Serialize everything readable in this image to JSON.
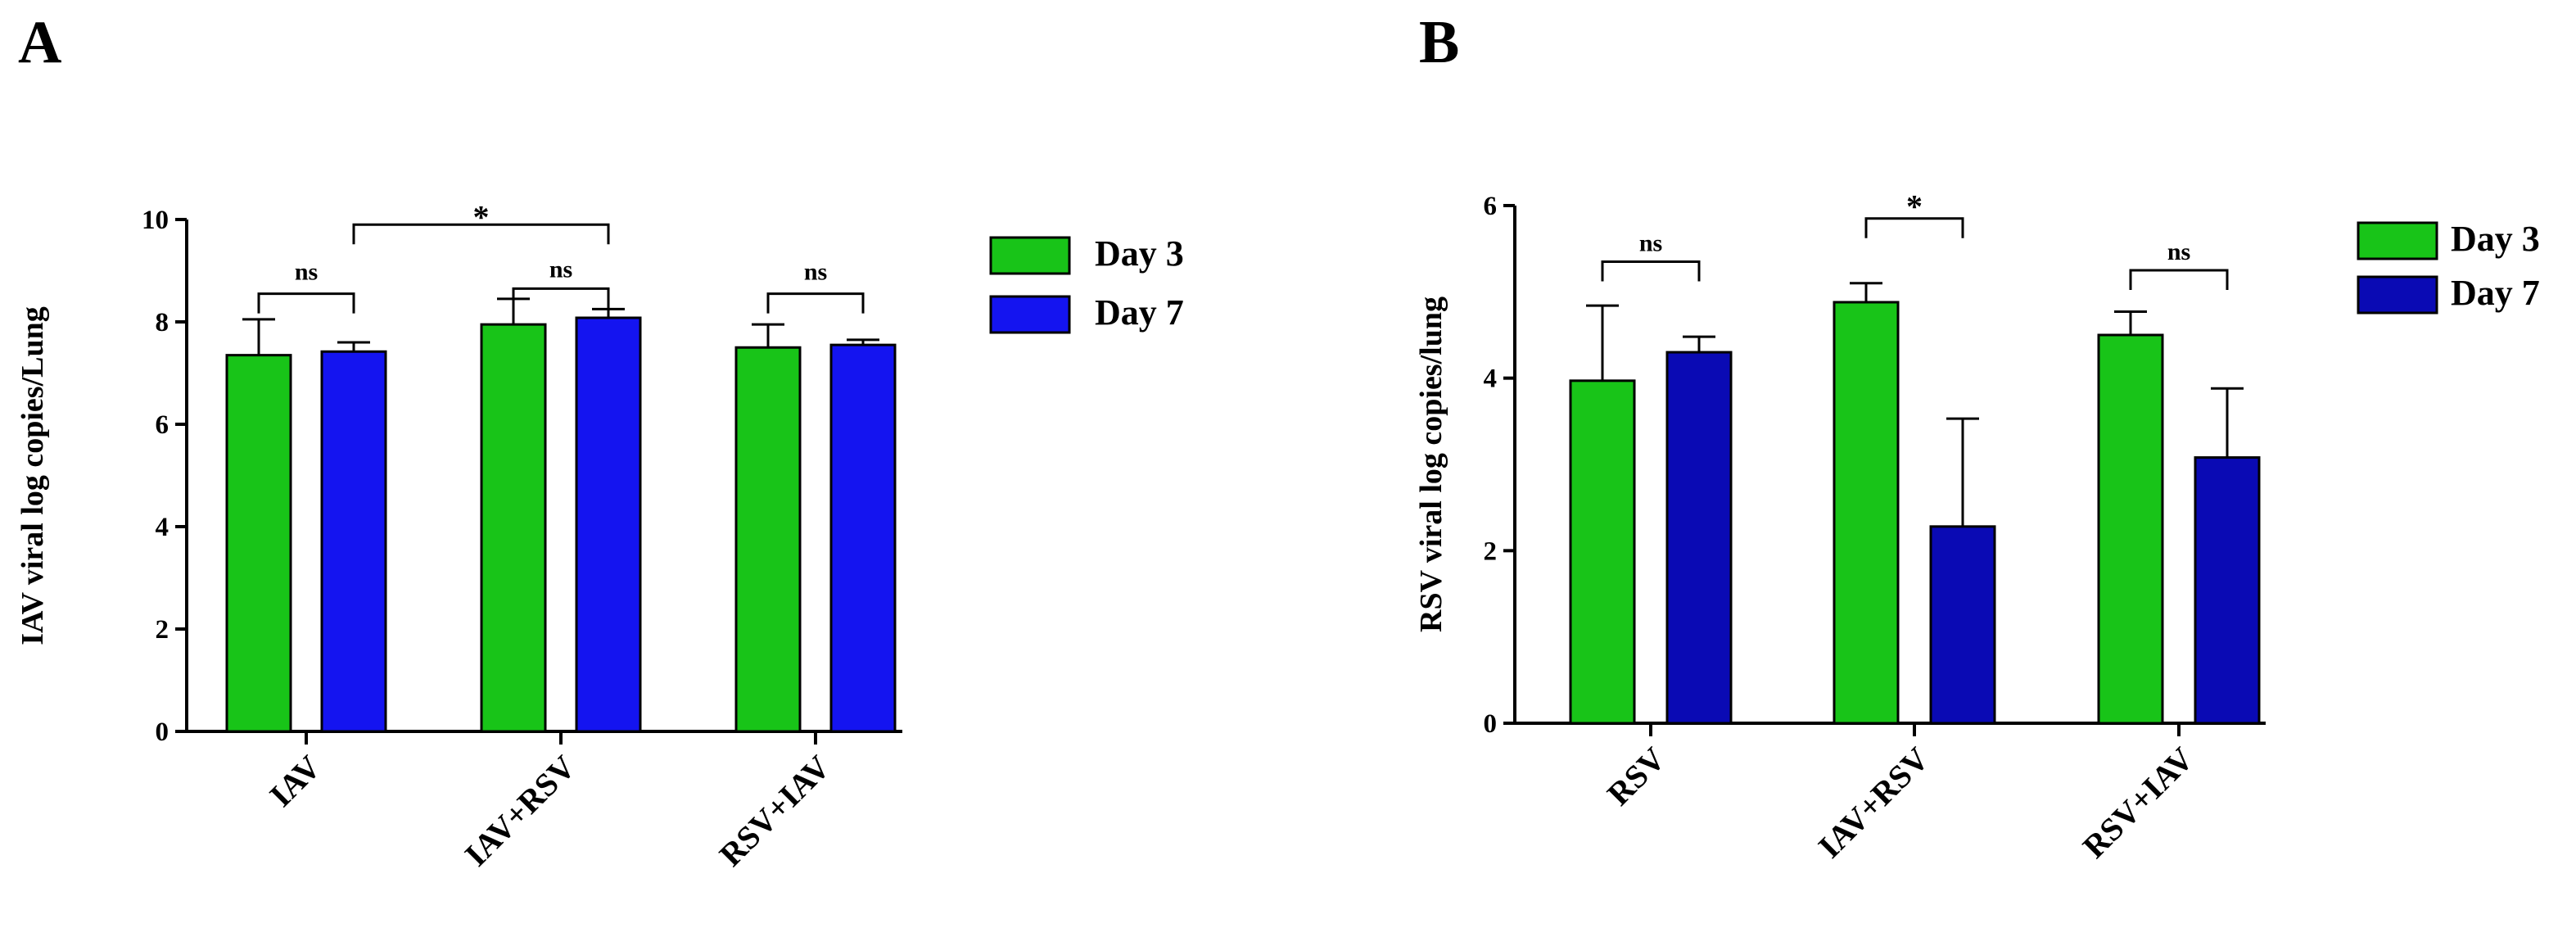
{
  "chart_data": [
    {
      "type": "bar",
      "panel": "A",
      "ylabel": "IAV viral log copies/Lung",
      "ylim": [
        0,
        10
      ],
      "yticks": [
        "0",
        "2",
        "4",
        "6",
        "8",
        "10"
      ],
      "categories": [
        "IAV",
        "IAV+RSV",
        "RSV+IAV"
      ],
      "series": [
        {
          "name": "Day 3",
          "color": "#18c418",
          "values": [
            7.35,
            7.95,
            7.5
          ],
          "errors": [
            0.7,
            0.5,
            0.45
          ]
        },
        {
          "name": "Day 7",
          "color": "#1414f0",
          "values": [
            7.42,
            8.08,
            7.55
          ],
          "errors": [
            0.18,
            0.17,
            0.1
          ]
        }
      ],
      "legend_position": "top-right",
      "annotations": [
        {
          "label": "ns",
          "from": [
            0,
            0
          ],
          "to": [
            0,
            1
          ],
          "y": 8.55,
          "text_y": 8.95
        },
        {
          "label": "*",
          "from": [
            0,
            1
          ],
          "to": [
            1,
            1
          ],
          "y": 9.9,
          "text_y": 10.15
        },
        {
          "label": "ns",
          "from": [
            1,
            0
          ],
          "to": [
            1,
            1
          ],
          "y": 8.65,
          "text_y": 9.0
        },
        {
          "label": "ns",
          "from": [
            2,
            0
          ],
          "to": [
            2,
            1
          ],
          "y": 8.55,
          "text_y": 8.95
        }
      ]
    },
    {
      "type": "bar",
      "panel": "B",
      "ylabel": "RSV viral log copies/lung",
      "ylim": [
        0,
        6
      ],
      "yticks": [
        "0",
        "2",
        "4",
        "6"
      ],
      "categories": [
        "RSV",
        "IAV+RSV",
        "RSV+IAV"
      ],
      "series": [
        {
          "name": "Day 3",
          "color": "#18c418",
          "values": [
            3.97,
            4.88,
            4.5
          ],
          "errors": [
            0.87,
            0.22,
            0.27
          ]
        },
        {
          "name": "Day 7",
          "color": "#0a0ab4",
          "values": [
            4.3,
            2.28,
            3.08
          ],
          "errors": [
            0.18,
            1.25,
            0.8
          ]
        }
      ],
      "legend_position": "top-right",
      "annotations": [
        {
          "label": "ns",
          "from": [
            0,
            0
          ],
          "to": [
            0,
            1
          ],
          "y": 5.35,
          "text_y": 5.55
        },
        {
          "label": "*",
          "from": [
            1,
            0
          ],
          "to": [
            1,
            1
          ],
          "y": 5.85,
          "text_y": 6.05
        },
        {
          "label": "ns",
          "from": [
            2,
            0
          ],
          "to": [
            2,
            1
          ],
          "y": 5.25,
          "text_y": 5.45
        }
      ]
    }
  ]
}
